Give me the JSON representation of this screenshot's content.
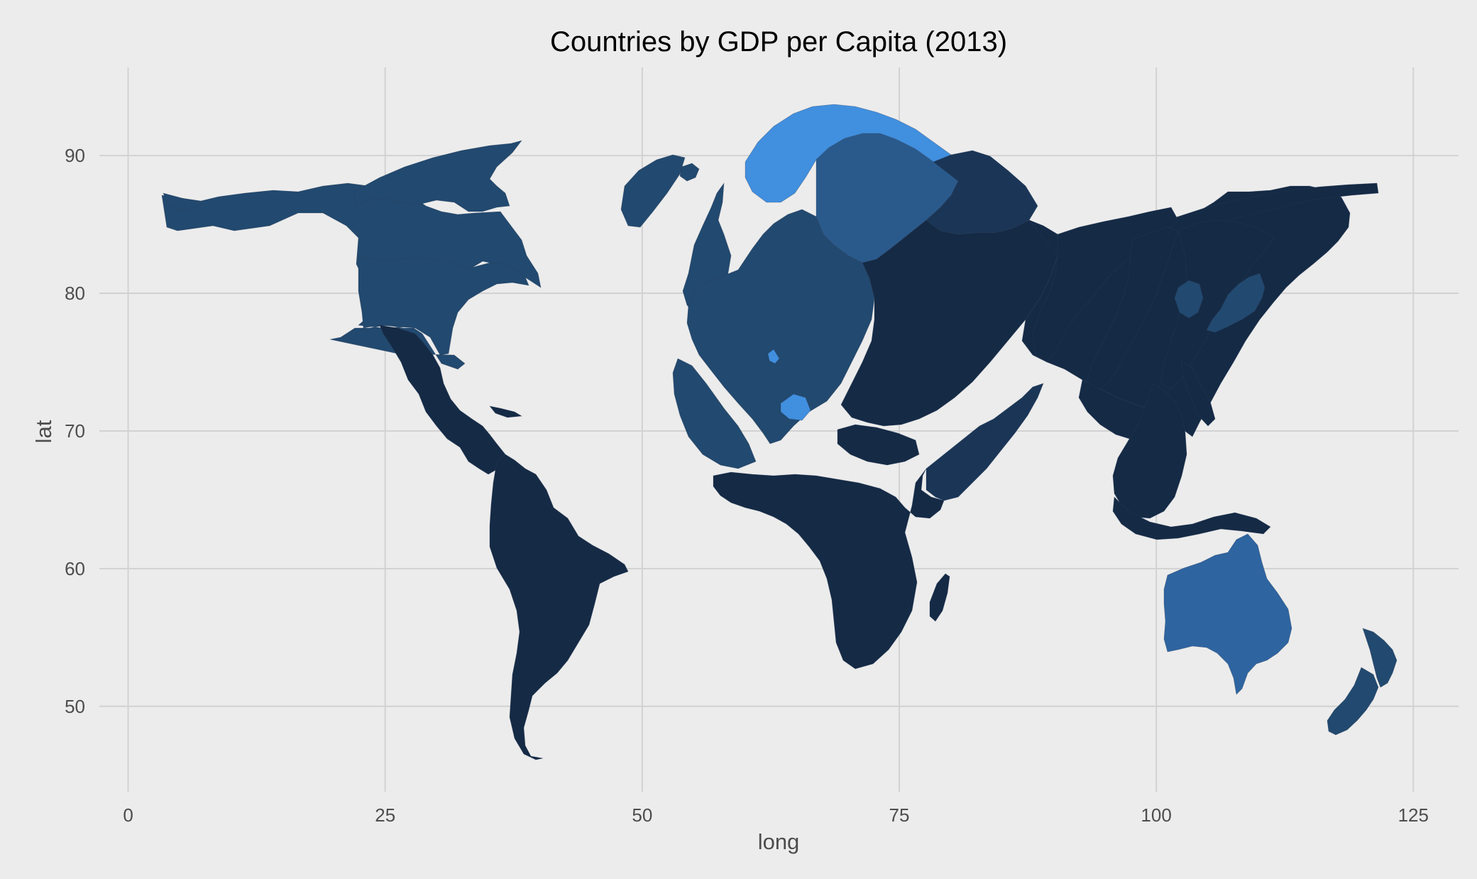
{
  "chart_data": {
    "type": "map",
    "title": "Countries by GDP per Capita (2013)",
    "xlabel": "long",
    "ylabel": "lat",
    "x_ticks": [
      0,
      25,
      50,
      75,
      100,
      125
    ],
    "y_ticks": [
      50,
      60,
      70,
      80,
      90
    ],
    "xlim": [
      -2.8,
      129.4
    ],
    "ylim": [
      43.8,
      96.4
    ],
    "grid": true,
    "legend": "none",
    "colors": {
      "background": "#ececec",
      "lowest": "#152a45",
      "low": "#1a3556",
      "mid": "#22496f",
      "mid_high": "#2a5a8c",
      "high": "#2e64a0",
      "highest": "#418fdf"
    },
    "regions": [
      {
        "name": "north-america",
        "tier": "mid"
      },
      {
        "name": "greenland",
        "tier": "mid"
      },
      {
        "name": "latin-america",
        "tier": "lowest"
      },
      {
        "name": "iceland",
        "tier": "mid"
      },
      {
        "name": "britain-ireland",
        "tier": "mid"
      },
      {
        "name": "norway",
        "tier": "highest"
      },
      {
        "name": "sweden-finland",
        "tier": "mid_high"
      },
      {
        "name": "russia-north",
        "tier": "low"
      },
      {
        "name": "western-europe",
        "tier": "mid"
      },
      {
        "name": "eastern-europe",
        "tier": "lowest"
      },
      {
        "name": "switzerland",
        "tier": "highest"
      },
      {
        "name": "africa",
        "tier": "lowest"
      },
      {
        "name": "madagascar",
        "tier": "lowest"
      },
      {
        "name": "middle-east",
        "tier": "low"
      },
      {
        "name": "asia",
        "tier": "lowest"
      },
      {
        "name": "japan-korea",
        "tier": "mid"
      },
      {
        "name": "southeast-asia",
        "tier": "lowest"
      },
      {
        "name": "australia",
        "tier": "high"
      },
      {
        "name": "new-zealand",
        "tier": "mid"
      }
    ]
  }
}
